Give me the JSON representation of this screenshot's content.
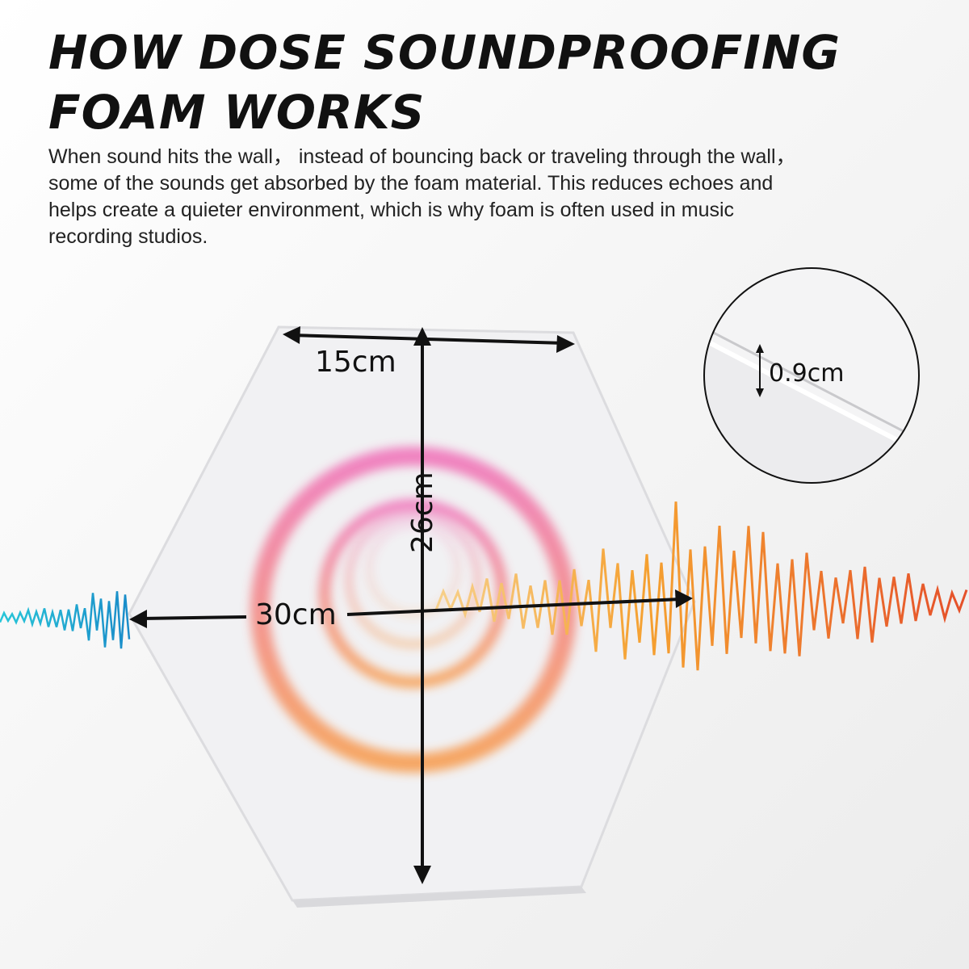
{
  "header": {
    "title_line1": "HOW DOSE SOUNDPROOFING",
    "title_line2": "FOAM WORKS",
    "description": "When sound hits the wall， instead of bouncing back or traveling through the wall， some of the sounds get absorbed by the foam material. This reduces echoes and helps create a quieter environment, which is why foam is often used in music recording studios."
  },
  "product": {
    "shape": "hexagon acoustic foam panel",
    "dimensions": {
      "edge": "15cm",
      "height": "26cm",
      "width": "30cm",
      "thickness": "0.9cm"
    }
  },
  "colors": {
    "incoming_wave": "#1aa7c9",
    "outgoing_wave": "#f07a20",
    "ring_top": "#f06fb8",
    "ring_bottom": "#f79a4a"
  }
}
